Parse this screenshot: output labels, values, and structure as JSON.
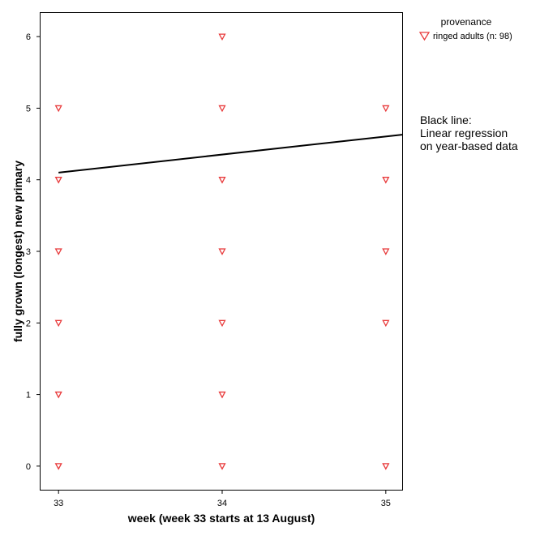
{
  "chart_data": {
    "type": "scatter",
    "xlabel": "week (week 33 starts at 13 August)",
    "ylabel": "fully grown (longest) new primary",
    "xlim": [
      32.89,
      35.1
    ],
    "ylim": [
      -0.33,
      6.33
    ],
    "xticks": [
      "33",
      "34",
      "35"
    ],
    "yticks": [
      "0",
      "1",
      "2",
      "3",
      "4",
      "5",
      "6"
    ],
    "grid": false,
    "legend": {
      "title": "provenance",
      "placement": "top-right, outside plot",
      "entries": [
        {
          "label": "ringed adults (n: 98)",
          "marker": "triangle-down-open",
          "color": "#e8393a"
        }
      ]
    },
    "series": [
      {
        "name": "ringed adults (n: 98)",
        "color": "#e8393a",
        "marker": "triangle-down",
        "points": [
          {
            "x": 33,
            "y": 0
          },
          {
            "x": 33,
            "y": 1
          },
          {
            "x": 33,
            "y": 2
          },
          {
            "x": 33,
            "y": 3
          },
          {
            "x": 33,
            "y": 4
          },
          {
            "x": 33,
            "y": 5
          },
          {
            "x": 34,
            "y": 0
          },
          {
            "x": 34,
            "y": 1
          },
          {
            "x": 34,
            "y": 2
          },
          {
            "x": 34,
            "y": 3
          },
          {
            "x": 34,
            "y": 4
          },
          {
            "x": 34,
            "y": 5
          },
          {
            "x": 34,
            "y": 6
          },
          {
            "x": 35,
            "y": 0
          },
          {
            "x": 35,
            "y": 2
          },
          {
            "x": 35,
            "y": 3
          },
          {
            "x": 35,
            "y": 4
          },
          {
            "x": 35,
            "y": 5
          }
        ]
      }
    ],
    "regression_line": {
      "color": "#000000",
      "points": [
        {
          "x": 33,
          "y": 4.1
        },
        {
          "x": 35.1,
          "y": 4.63
        }
      ]
    },
    "annotation": [
      "Black line:",
      "Linear regression",
      "on year-based data"
    ]
  }
}
